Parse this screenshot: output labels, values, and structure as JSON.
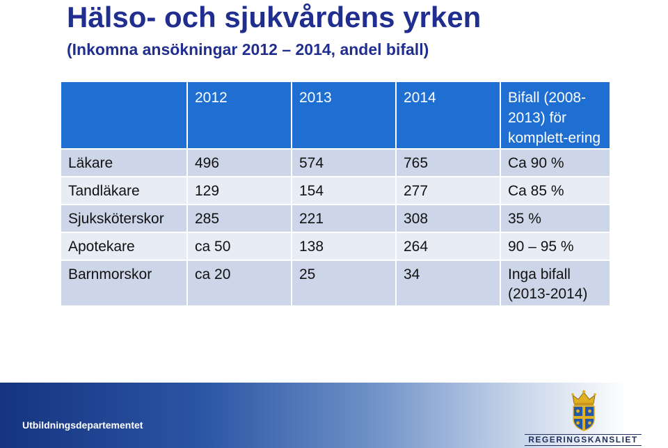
{
  "title": "Hälso- och sjukvårdens yrken",
  "subtitle": "(Inkomna ansökningar 2012 – 2014, andel bifall)",
  "table": {
    "headers": [
      "",
      "2012",
      "2013",
      "2014",
      "Bifall (2008-2013) för komplett-ering"
    ],
    "rows": [
      {
        "profession": "Läkare",
        "y2012": "496",
        "y2013": "574",
        "y2014": "765",
        "approval": "Ca 90 %"
      },
      {
        "profession": "Tandläkare",
        "y2012": "129",
        "y2013": "154",
        "y2014": "277",
        "approval": "Ca 85 %"
      },
      {
        "profession": "Sjuksköterskor",
        "y2012": "285",
        "y2013": "221",
        "y2014": "308",
        "approval": "35 %"
      },
      {
        "profession": "Apotekare",
        "y2012": "ca 50",
        "y2013": "138",
        "y2014": "264",
        "approval": "90 – 95 %"
      },
      {
        "profession": "Barnmorskor",
        "y2012": "ca 20",
        "y2013": "25",
        "y2014": "34",
        "approval": "Inga bifall (2013-2014)"
      }
    ]
  },
  "footer": {
    "department": "Utbildningsdepartementet",
    "logo_text": "REGERINGSKANSLIET",
    "logo_icon": "crown-shield-crest-icon"
  },
  "colors": {
    "title": "#1f2e8f",
    "header_bg": "#1f6fd3",
    "row_odd": "#cdd6e8",
    "row_even": "#e8ecf4"
  }
}
